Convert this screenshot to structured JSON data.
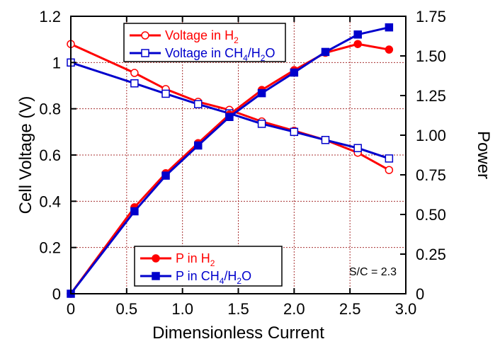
{
  "chart_data": {
    "type": "line",
    "xlabel": "Dimensionless Current",
    "ylabel": "Cell Voltage (V)",
    "y2label": "Power",
    "xlim": [
      0,
      3.0
    ],
    "ylim": [
      0,
      1.2
    ],
    "y2lim": [
      0,
      1.75
    ],
    "xticks": [
      "0",
      "0.5",
      "1.0",
      "1.5",
      "2.0",
      "2.5",
      "3.0"
    ],
    "yticks": [
      "0",
      "0.2",
      "0.4",
      "0.6",
      "0.8",
      "1",
      "1.2"
    ],
    "y2ticks": [
      "0",
      "0.25",
      "0.50",
      "0.75",
      "1.00",
      "1.25",
      "1.50",
      "1.75"
    ],
    "grid": true,
    "annotation": "S/C = 2.3",
    "colors": {
      "h2": "#ff0000",
      "ch4": "#0000cc",
      "grid": "#a83232"
    },
    "series": [
      {
        "name": "Voltage in H",
        "sub": "2",
        "tail": "",
        "axis": "left",
        "marker": "circle-open",
        "color": "#ff0000",
        "x": [
          0,
          0.57,
          0.85,
          1.14,
          1.42,
          1.71,
          2.0,
          2.28,
          2.57,
          2.85
        ],
        "y": [
          1.08,
          0.955,
          0.885,
          0.83,
          0.795,
          0.745,
          0.705,
          0.665,
          0.61,
          0.535
        ]
      },
      {
        "name": "Voltage in CH",
        "sub": "4",
        "tail": "/H",
        "sub2": "2",
        "tail2": "O",
        "axis": "left",
        "marker": "square-open",
        "color": "#0000cc",
        "x": [
          0,
          0.57,
          0.85,
          1.14,
          1.42,
          1.71,
          2.0,
          2.28,
          2.57,
          2.85
        ],
        "y": [
          1.0,
          0.91,
          0.865,
          0.82,
          0.78,
          0.735,
          0.7,
          0.665,
          0.63,
          0.585
        ]
      },
      {
        "name": "P in H",
        "sub": "2",
        "tail": "",
        "axis": "right",
        "marker": "circle-filled",
        "color": "#ff0000",
        "x": [
          0,
          0.57,
          0.85,
          1.14,
          1.42,
          1.71,
          2.0,
          2.28,
          2.57,
          2.85
        ],
        "y": [
          0,
          0.545,
          0.76,
          0.95,
          1.13,
          1.285,
          1.41,
          1.52,
          1.575,
          1.54
        ]
      },
      {
        "name": "P in CH",
        "sub": "4",
        "tail": "/H",
        "sub2": "2",
        "tail2": "O",
        "axis": "right",
        "marker": "square-filled",
        "color": "#0000cc",
        "x": [
          0,
          0.57,
          0.85,
          1.14,
          1.42,
          1.71,
          2.0,
          2.28,
          2.57,
          2.85
        ],
        "y": [
          0,
          0.52,
          0.745,
          0.935,
          1.115,
          1.265,
          1.395,
          1.525,
          1.635,
          1.68
        ]
      }
    ]
  }
}
